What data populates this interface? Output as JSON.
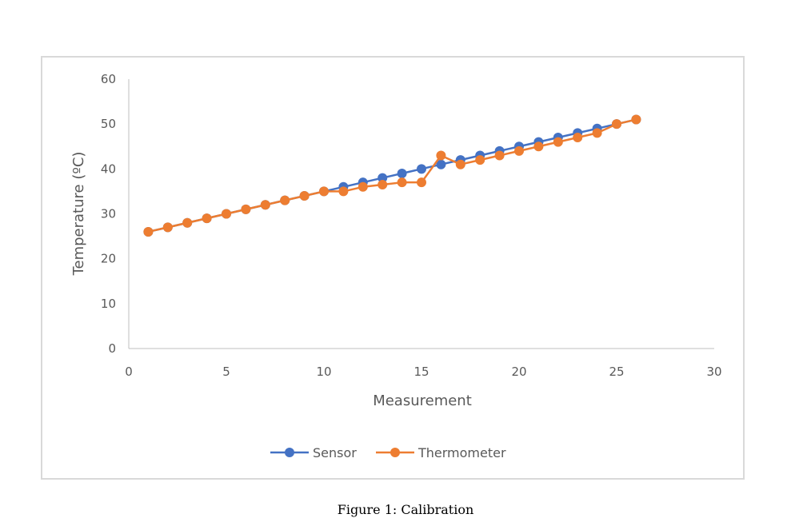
{
  "caption": "Figure 1: Calibration",
  "colors": {
    "sensor": "#4472c4",
    "thermometer": "#ed7d31",
    "axis": "#bfbfbf",
    "text": "#595959"
  },
  "chart_data": {
    "type": "line",
    "title": "",
    "xlabel": "Measurement",
    "ylabel": "Temperature (ºC)",
    "xlim": [
      0,
      30
    ],
    "ylim": [
      0,
      60
    ],
    "xticks": [
      0,
      5,
      10,
      15,
      20,
      25,
      30
    ],
    "yticks": [
      0,
      10,
      20,
      30,
      40,
      50,
      60
    ],
    "grid": false,
    "legend_position": "bottom",
    "x": [
      1,
      2,
      3,
      4,
      5,
      6,
      7,
      8,
      9,
      10,
      11,
      12,
      13,
      14,
      15,
      16,
      17,
      18,
      19,
      20,
      21,
      22,
      23,
      24,
      25,
      26
    ],
    "series": [
      {
        "name": "Sensor",
        "color": "#4472c4",
        "values": [
          26,
          27,
          28,
          29,
          30,
          31,
          32,
          33,
          34,
          35,
          36,
          37,
          38,
          39,
          40,
          41,
          42,
          43,
          44,
          45,
          46,
          47,
          48,
          49,
          50,
          51
        ]
      },
      {
        "name": "Thermometer",
        "color": "#ed7d31",
        "values": [
          26,
          27,
          28,
          29,
          30,
          31,
          32,
          33,
          34,
          35,
          35,
          36,
          36.5,
          37,
          37,
          43,
          41,
          42,
          43,
          44,
          45,
          46,
          47,
          48,
          50,
          51
        ]
      }
    ]
  }
}
